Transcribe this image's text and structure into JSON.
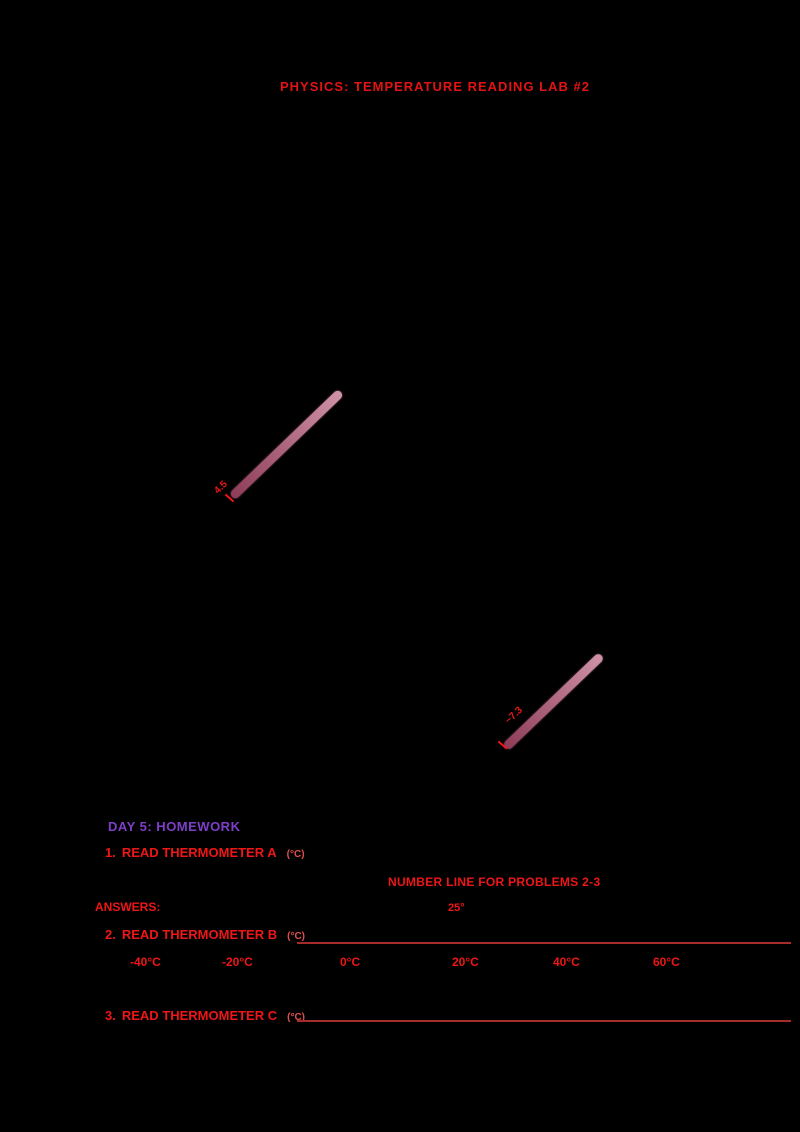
{
  "title": "PHYSICS: TEMPERATURE READING LAB #2",
  "objects": [
    {
      "name": "A",
      "tip_label": "4.5"
    },
    {
      "name": "B",
      "tip_label": "~7.3"
    }
  ],
  "homework": {
    "heading": "DAY 5: HOMEWORK",
    "note_center": "NUMBER LINE FOR PROBLEMS 2-3",
    "answers_label": "ANSWERS:",
    "zero_label": "25°",
    "items": [
      {
        "num": "1.",
        "label": "READ THERMOMETER A",
        "unit": "(°C)"
      },
      {
        "num": "2.",
        "label": "READ THERMOMETER B",
        "unit": "(°C)"
      },
      {
        "num": "3.",
        "label": "READ THERMOMETER C",
        "unit": "(°C)"
      }
    ],
    "scale": [
      "-40°C",
      "-20°C",
      "0°C",
      "20°C",
      "40°C",
      "60°C"
    ]
  },
  "colors": {
    "background": "#000000",
    "red": "#ee1616",
    "purple": "#7e3fc8",
    "bar_light": "#cf93a6",
    "bar_dark": "#8e3c58"
  }
}
